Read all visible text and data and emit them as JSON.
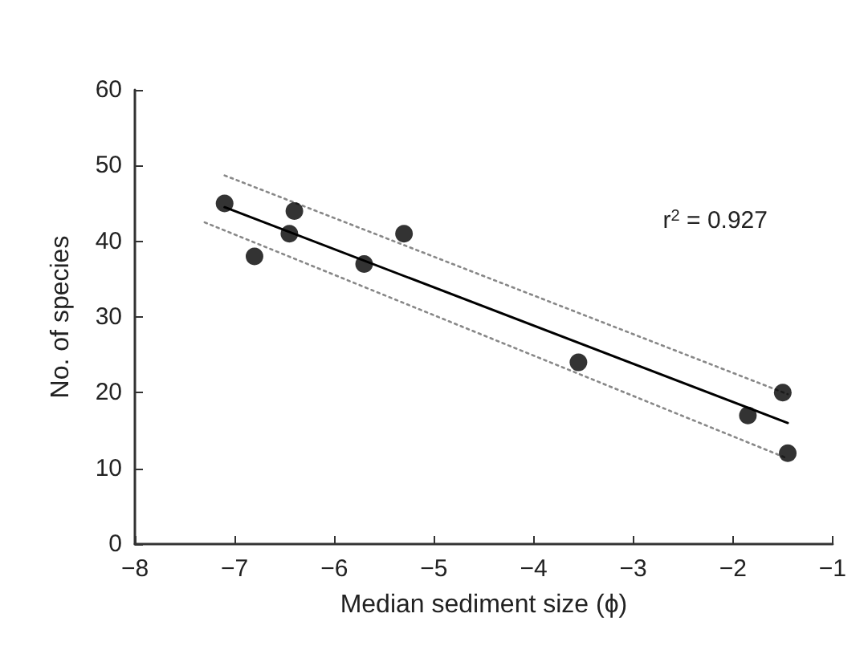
{
  "chart_data": {
    "type": "scatter",
    "xlabel": "Median sediment size (ϕ)",
    "ylabel": "No. of species",
    "x": [
      -7.1,
      -6.8,
      -6.45,
      -6.4,
      -5.7,
      -5.3,
      -3.55,
      -1.85,
      -1.5,
      -1.45
    ],
    "series": [
      {
        "color": "#000000",
        "values": [
          45,
          38,
          41,
          44,
          37,
          41,
          24,
          17,
          20,
          12
        ],
        "marker": "circle"
      },
      {
        "type": "line",
        "color": "#000000",
        "x": [
          -7.1,
          -1.45
        ],
        "values": [
          44.5,
          16
        ],
        "line_style": "solid",
        "marker": "none"
      },
      {
        "type": "line",
        "color": "#888888",
        "x": [
          -7.1,
          -1.45
        ],
        "values": [
          48.7,
          19.8
        ],
        "line_style": "dotted",
        "marker": "none"
      },
      {
        "type": "line",
        "color": "#888888",
        "x": [
          -7.3,
          -1.45
        ],
        "values": [
          42.5,
          11.3
        ],
        "line_style": "dotted",
        "marker": "none"
      }
    ],
    "annotations": [
      "r$^{2}$ = 0.927"
    ],
    "xlim": [
      -8,
      -1
    ],
    "xticks": [
      -8,
      -7,
      -6,
      -5,
      -4,
      -3,
      -2,
      -1
    ],
    "ylim": [
      0,
      60
    ],
    "yticks": [
      0,
      10,
      20,
      30,
      40,
      50,
      60
    ],
    "grid": false
  }
}
